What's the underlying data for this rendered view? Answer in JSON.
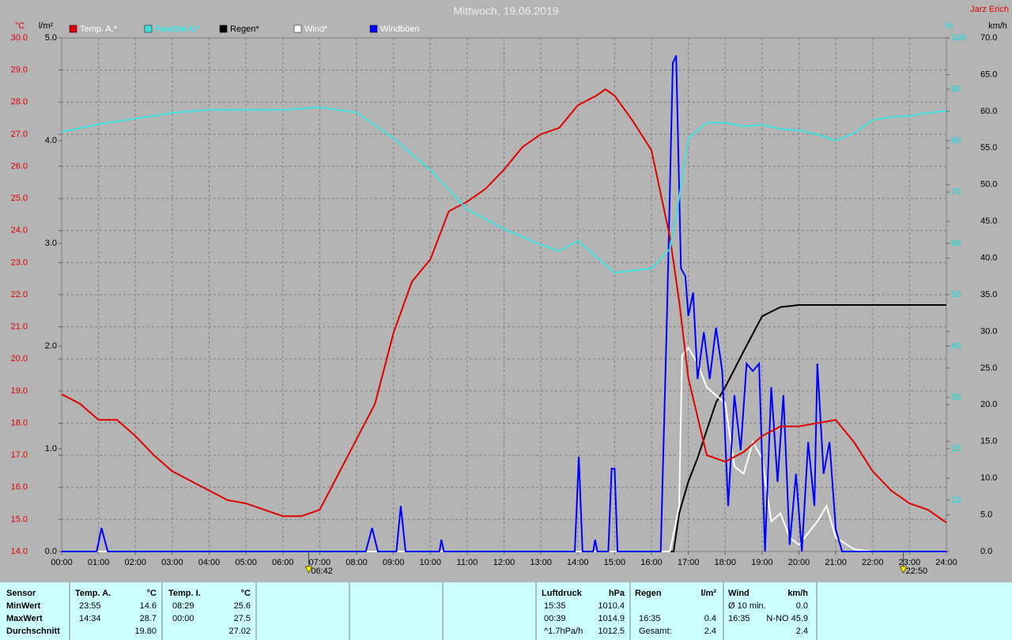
{
  "chart_data": {
    "type": "line",
    "title": "Mittwoch, 19.06.2019",
    "author": "Jarz Erich",
    "grid": true,
    "xlim": [
      0,
      24
    ],
    "xticks": [
      {
        "value": 0,
        "label": "00:00"
      },
      {
        "value": 1,
        "label": "01:00"
      },
      {
        "value": 2,
        "label": "02:00"
      },
      {
        "value": 3,
        "label": "03:00"
      },
      {
        "value": 4,
        "label": "04:00"
      },
      {
        "value": 5,
        "label": "05:00"
      },
      {
        "value": 6,
        "label": "06:00"
      },
      {
        "value": 7,
        "label": "07:00"
      },
      {
        "value": 8,
        "label": "08:00"
      },
      {
        "value": 9,
        "label": "09:00"
      },
      {
        "value": 10,
        "label": "10:00"
      },
      {
        "value": 11,
        "label": "11:00"
      },
      {
        "value": 12,
        "label": "12:00"
      },
      {
        "value": 13,
        "label": "13:00"
      },
      {
        "value": 14,
        "label": "14:00"
      },
      {
        "value": 15,
        "label": "15:00"
      },
      {
        "value": 16,
        "label": "16:00"
      },
      {
        "value": 17,
        "label": "17:00"
      },
      {
        "value": 18,
        "label": "18:00"
      },
      {
        "value": 19,
        "label": "19:00"
      },
      {
        "value": 20,
        "label": "20:00"
      },
      {
        "value": 21,
        "label": "21:00"
      },
      {
        "value": 22,
        "label": "22:00"
      },
      {
        "value": 23,
        "label": "23:00"
      },
      {
        "value": 24,
        "label": "24:00"
      }
    ],
    "axes": [
      {
        "label": "°C",
        "color": "#e00000",
        "lim": [
          14,
          30
        ],
        "ticks": [
          {
            "value": 14,
            "label": "14.0"
          },
          {
            "value": 15,
            "label": "15.0"
          },
          {
            "value": 16,
            "label": "16.0"
          },
          {
            "value": 17,
            "label": "17.0"
          },
          {
            "value": 18,
            "label": "18.0"
          },
          {
            "value": 19,
            "label": "19.0"
          },
          {
            "value": 20,
            "label": "20.0"
          },
          {
            "value": 21,
            "label": "21.0"
          },
          {
            "value": 22,
            "label": "22.0"
          },
          {
            "value": 23,
            "label": "23.0"
          },
          {
            "value": 24,
            "label": "24.0"
          },
          {
            "value": 25,
            "label": "25.0"
          },
          {
            "value": 26,
            "label": "26.0"
          },
          {
            "value": 27,
            "label": "27.0"
          },
          {
            "value": 28,
            "label": "28.0"
          },
          {
            "value": 29,
            "label": "29.0"
          },
          {
            "value": 30,
            "label": "30.0"
          }
        ]
      },
      {
        "label": "l/m²",
        "color": "#000000",
        "lim": [
          0,
          5
        ],
        "ticks": [
          {
            "value": 0,
            "label": "0.0"
          },
          {
            "value": 1,
            "label": "1.0"
          },
          {
            "value": 2,
            "label": "2.0"
          },
          {
            "value": 3,
            "label": "3.0"
          },
          {
            "value": 4,
            "label": "4.0"
          },
          {
            "value": 5,
            "label": "5.0"
          }
        ]
      },
      {
        "label": "%",
        "color": "#00e0e0",
        "lim": [
          0,
          100
        ],
        "ticks": [
          10,
          20,
          30,
          40,
          50,
          60,
          70,
          80,
          90,
          100
        ]
      },
      {
        "label": "km/h",
        "color": "#000000",
        "lim": [
          0,
          70
        ],
        "ticks": [
          {
            "value": 0,
            "label": "0.0"
          },
          {
            "value": 5,
            "label": "5.0"
          },
          {
            "value": 10,
            "label": "10.0"
          },
          {
            "value": 15,
            "label": "15.0"
          },
          {
            "value": 20,
            "label": "20.0"
          },
          {
            "value": 25,
            "label": "25.0"
          },
          {
            "value": 30,
            "label": "30.0"
          },
          {
            "value": 35,
            "label": "35.0"
          },
          {
            "value": 40,
            "label": "40.0"
          },
          {
            "value": 45,
            "label": "45.0"
          },
          {
            "value": 50,
            "label": "50.0"
          },
          {
            "value": 55,
            "label": "55.0"
          },
          {
            "value": 60,
            "label": "60.0"
          },
          {
            "value": 65,
            "label": "65.0"
          },
          {
            "value": 70,
            "label": "70.0"
          }
        ]
      }
    ],
    "series": [
      {
        "name": "Temp. A.*",
        "color": "#e00000",
        "legend_text_color": "#ffffff",
        "axis": 0,
        "x": [
          0,
          0.5,
          1,
          1.5,
          2,
          2.5,
          3,
          3.5,
          4,
          4.5,
          5,
          5.5,
          6,
          6.5,
          7,
          7.5,
          8,
          8.5,
          9,
          9.5,
          10,
          10.5,
          11,
          11.5,
          12,
          12.5,
          13,
          13.5,
          14,
          14.5,
          14.75,
          15,
          15.5,
          16,
          16.5,
          16.75,
          17,
          17.5,
          18,
          18.5,
          19,
          19.5,
          20,
          20.5,
          21,
          21.5,
          22,
          22.5,
          23,
          23.5,
          24
        ],
        "values": [
          18.9,
          18.6,
          18.1,
          18.1,
          17.6,
          17.0,
          16.5,
          16.2,
          15.9,
          15.6,
          15.5,
          15.3,
          15.1,
          15.1,
          15.3,
          16.4,
          17.5,
          18.6,
          20.8,
          22.4,
          23.1,
          24.6,
          24.9,
          25.3,
          25.9,
          26.6,
          27.0,
          27.2,
          27.9,
          28.2,
          28.4,
          28.2,
          27.4,
          26.5,
          23.8,
          21.8,
          19.4,
          17.0,
          16.8,
          17.1,
          17.6,
          17.9,
          17.9,
          18.0,
          18.1,
          17.4,
          16.5,
          15.9,
          15.5,
          15.3,
          14.9
        ]
      },
      {
        "name": "Feuchte A.*",
        "color": "#40e0e0",
        "legend_text_color": "#00ffff",
        "axis": 2,
        "x": [
          0,
          1,
          2,
          3,
          4,
          5,
          6,
          7,
          8,
          9,
          10,
          11,
          12,
          13,
          13.5,
          14,
          15,
          16,
          16.5,
          16.75,
          17,
          17.5,
          18,
          18.5,
          19,
          19.5,
          20,
          20.5,
          21,
          21.5,
          22,
          22.5,
          23,
          23.5,
          24
        ],
        "values": [
          81.7,
          83.2,
          84.3,
          85.4,
          86.0,
          86.0,
          86.0,
          86.5,
          85.5,
          80.5,
          74.3,
          66.6,
          62.8,
          59.7,
          58.5,
          60.5,
          54.3,
          55.1,
          58.9,
          68.9,
          80.5,
          83.5,
          83.5,
          82.8,
          83.1,
          82.3,
          82.0,
          81.2,
          80.0,
          81.5,
          84.0,
          84.6,
          84.8,
          85.4,
          85.8
        ]
      },
      {
        "name": "Regen*",
        "color": "#000000",
        "legend_text_color": "#000000",
        "axis": 1,
        "x": [
          0,
          16.6,
          16.75,
          17,
          17.25,
          17.5,
          17.75,
          18,
          18.5,
          19,
          19.5,
          20,
          24
        ],
        "values": [
          0,
          0,
          0.37,
          0.68,
          0.91,
          1.18,
          1.45,
          1.6,
          1.95,
          2.29,
          2.38,
          2.4,
          2.4
        ]
      },
      {
        "name": "Wind*",
        "color": "#ffffff",
        "legend_text_color": "#ffffff",
        "axis": 3,
        "x": [
          0,
          16.5,
          16.75,
          16.83,
          17,
          17.25,
          17.5,
          17.75,
          18,
          18.25,
          18.5,
          18.75,
          19,
          19.25,
          19.5,
          19.75,
          20,
          20.5,
          20.75,
          21,
          21.5,
          22,
          24
        ],
        "values": [
          0,
          0,
          6.2,
          26.7,
          27.8,
          25.6,
          22.4,
          21.3,
          20.2,
          11.6,
          10.6,
          14.9,
          12.7,
          4.1,
          5.2,
          1.9,
          0.9,
          4.1,
          6.2,
          1.9,
          0.3,
          0,
          0
        ]
      },
      {
        "name": "Windböen",
        "color": "#0000ff",
        "legend_text_color": "#ffffff",
        "axis": 3,
        "x": [
          0,
          0.95,
          1.08,
          1.25,
          8.25,
          8.42,
          8.58,
          9.08,
          9.2,
          9.33,
          10.25,
          10.3,
          10.37,
          13.92,
          14.03,
          14.13,
          14.42,
          14.47,
          14.53,
          14.83,
          14.92,
          15,
          15.08,
          16.25,
          16.42,
          16.58,
          16.67,
          16.8,
          16.92,
          17,
          17.13,
          17.25,
          17.42,
          17.58,
          17.75,
          17.92,
          18.08,
          18.25,
          18.42,
          18.58,
          18.75,
          18.92,
          19.08,
          19.25,
          19.42,
          19.58,
          19.75,
          19.92,
          20.08,
          20.25,
          20.42,
          20.5,
          20.67,
          20.83,
          21,
          21.17,
          24
        ],
        "values": [
          0,
          0,
          3.2,
          0,
          0,
          3.2,
          0,
          0,
          6.2,
          0,
          0,
          1.6,
          0,
          0,
          12.9,
          0,
          0,
          1.6,
          0,
          0,
          11.3,
          11.3,
          0,
          0,
          32.1,
          66.6,
          67.6,
          38.6,
          37.5,
          32.1,
          35.3,
          23.5,
          29.9,
          23.5,
          30.5,
          24.6,
          6.2,
          21.3,
          13.8,
          25.6,
          24.6,
          25.6,
          0,
          22.4,
          9.5,
          21.3,
          0.9,
          10.6,
          0,
          14.9,
          6.2,
          25.6,
          10.6,
          14.9,
          3.0,
          0,
          0
        ]
      }
    ],
    "markers": [
      {
        "x": 6.7,
        "label": "06:42"
      },
      {
        "x": 22.8333,
        "label": "22:50"
      }
    ]
  },
  "table": {
    "row_labels": [
      "Sensor",
      "MinWert",
      "MaxWert",
      "Durchschnitt"
    ],
    "columns": [
      {
        "title": "Temp. A.",
        "unit": "°C",
        "rows": [
          [
            "23:55",
            "14.6"
          ],
          [
            "14:34",
            "28.7"
          ],
          [
            null,
            "19.80"
          ]
        ]
      },
      {
        "title": "Temp. I.",
        "unit": "°C",
        "rows": [
          [
            "08:29",
            "25.6"
          ],
          [
            "00:00",
            "27.5"
          ],
          [
            null,
            "27.02"
          ]
        ]
      },
      {
        "title": "Luftdruck",
        "unit": "hPa",
        "rows": [
          [
            "15:35",
            "1010.4"
          ],
          [
            "00:39",
            "1014.9"
          ],
          [
            "^1.7hPa/h",
            "1012.5"
          ]
        ]
      },
      {
        "title": "Regen",
        "unit": "l/m²",
        "rows": [
          [
            null,
            null
          ],
          [
            "16:35",
            "0.4"
          ],
          [
            "Gesamt:",
            "2.4"
          ]
        ]
      },
      {
        "title": "Wind",
        "unit": "km/h",
        "rows": [
          [
            "Ø 10 min.",
            "0.0"
          ],
          [
            "16:35",
            "N-NO 45.9"
          ],
          [
            null,
            "2.4"
          ]
        ]
      }
    ]
  }
}
